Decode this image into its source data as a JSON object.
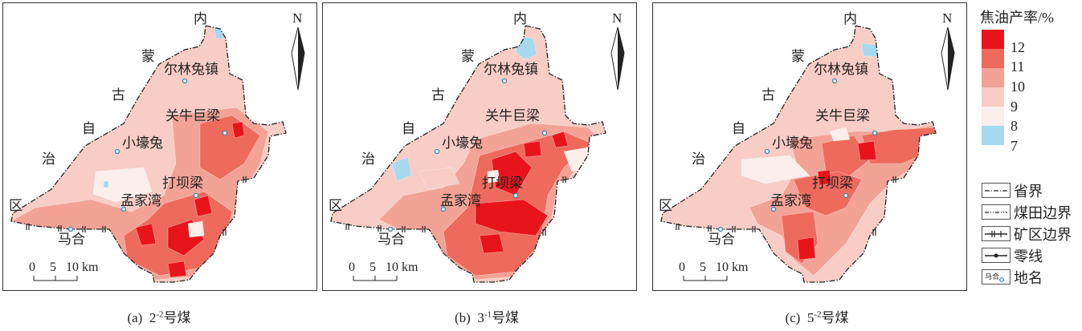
{
  "panels": [
    {
      "caption_prefix": "(a)",
      "coal_base": "2",
      "coal_exp": "-2",
      "coal_suffix": "号煤",
      "labels": {
        "nei": "内",
        "meng": "蒙",
        "gu": "古",
        "zi": "自",
        "zhi": "治",
        "qu": "区",
        "erlintu": "尔林兔镇",
        "guanniu": "关牛巨梁",
        "xiaohao": "小壕兔",
        "daba": "打坝梁",
        "mengjia": "孟家湾",
        "mahe": "马合"
      },
      "north": "N",
      "scale": [
        "0",
        "5",
        "10 km"
      ]
    },
    {
      "caption_prefix": "(b)",
      "coal_base": "3",
      "coal_exp": "-1",
      "coal_suffix": "号煤",
      "labels": {
        "nei": "内",
        "meng": "蒙",
        "gu": "古",
        "zi": "自",
        "zhi": "治",
        "qu": "区",
        "erlintu": "尔林兔镇",
        "guanniu": "关牛巨梁",
        "xiaohao": "小壕兔",
        "daba": "打坝梁",
        "mengjia": "孟家湾",
        "mahe": "马合"
      },
      "north": "N",
      "scale": [
        "0",
        "5",
        "10 km"
      ]
    },
    {
      "caption_prefix": "(c)",
      "coal_base": "5",
      "coal_exp": "-2",
      "coal_suffix": "号煤",
      "labels": {
        "nei": "内",
        "meng": "蒙",
        "gu": "古",
        "zi": "自",
        "zhi": "治",
        "qu": "区",
        "erlintu": "尔林兔镇",
        "guanniu": "关牛巨梁",
        "xiaohao": "小壕兔",
        "daba": "打坝梁",
        "mengjia": "孟家湾",
        "mahe": "马合"
      },
      "north": "N",
      "scale": [
        "0",
        "5",
        "10 km"
      ]
    }
  ],
  "legend": {
    "title": "焦油产率/%",
    "ticks": [
      "12",
      "11",
      "10",
      "9",
      "8",
      "7"
    ],
    "colors": [
      "#e8141c",
      "#ee6a5c",
      "#f3a296",
      "#f7cdc5",
      "#fbeeeb",
      "#a7d9ef"
    ],
    "symbols": [
      {
        "icon": "province-boundary-icon",
        "label": "省界"
      },
      {
        "icon": "coalfield-boundary-icon",
        "label": "煤田边界"
      },
      {
        "icon": "mining-area-boundary-icon",
        "label": "矿区边界"
      },
      {
        "icon": "zero-line-icon",
        "label": "零线"
      },
      {
        "icon": "place-marker-icon",
        "sample": "马合",
        "label": "地名"
      }
    ]
  }
}
